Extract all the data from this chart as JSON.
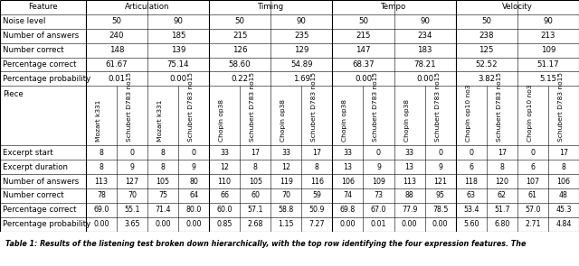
{
  "top_headers": [
    "Feature",
    "Articulation",
    "Timing",
    "Tempo",
    "Velocity"
  ],
  "noise_row": [
    "Noise level",
    "50",
    "90",
    "50",
    "90",
    "50",
    "90",
    "50",
    "90"
  ],
  "section1_rows": [
    [
      "Number of answers",
      "240",
      "185",
      "215",
      "235",
      "215",
      "234",
      "238",
      "213"
    ],
    [
      "Number correct",
      "148",
      "139",
      "126",
      "129",
      "147",
      "183",
      "125",
      "109"
    ],
    [
      "Percentage correct",
      "61.67",
      "75.14",
      "58.60",
      "54.89",
      "68.37",
      "78.21",
      "52.52",
      "51.17"
    ],
    [
      "Percentage probability",
      "0.01",
      "0.00",
      "0.22",
      "1.69",
      "0.00",
      "0.00",
      "3.82",
      "5.15"
    ]
  ],
  "all_piece_subheaders": [
    "Mozart k331",
    "Schubert D783 no15",
    "Mozart k331",
    "Schubert D783 no15",
    "Chopin op38",
    "Schubert D783 no15",
    "Chopin op38",
    "Schubert D783 no15",
    "Chopin op38",
    "Schubert D783 no15",
    "Chopin op38",
    "Schubert D783 no15",
    "Chopin op10 no3",
    "Schubert D783 no15",
    "Chopin op10 no3",
    "Schubert D783 no15"
  ],
  "section2_rows": [
    [
      "Excerpt start",
      "8",
      "0",
      "8",
      "0",
      "33",
      "17",
      "33",
      "17",
      "33",
      "0",
      "33",
      "0",
      "0",
      "17",
      "0",
      "17"
    ],
    [
      "Excerpt duration",
      "8",
      "9",
      "8",
      "9",
      "12",
      "8",
      "12",
      "8",
      "13",
      "9",
      "13",
      "9",
      "6",
      "8",
      "6",
      "8"
    ],
    [
      "Number of answers",
      "113",
      "127",
      "105",
      "80",
      "110",
      "105",
      "119",
      "116",
      "106",
      "109",
      "113",
      "121",
      "118",
      "120",
      "107",
      "106"
    ],
    [
      "Number correct",
      "78",
      "70",
      "75",
      "64",
      "66",
      "60",
      "70",
      "59",
      "74",
      "73",
      "88",
      "95",
      "63",
      "62",
      "61",
      "48"
    ],
    [
      "Percentage correct",
      "69.0",
      "55.1",
      "71.4",
      "80.0",
      "60.0",
      "57.1",
      "58.8",
      "50.9",
      "69.8",
      "67.0",
      "77.9",
      "78.5",
      "53.4",
      "51.7",
      "57.0",
      "45.3"
    ],
    [
      "Percentage probability",
      "0.00",
      "3.65",
      "0.00",
      "0.00",
      "0.85",
      "2.68",
      "1.15",
      "7.27",
      "0.00",
      "0.01",
      "0.00",
      "0.00",
      "5.60",
      "6.80",
      "2.71",
      "4.84"
    ]
  ],
  "caption": "Table 1: Results of the listening test broken down hierarchically, with the top row identifying the four expression features. The",
  "bg_color": "#ffffff",
  "line_color": "#000000",
  "text_color": "#000000"
}
